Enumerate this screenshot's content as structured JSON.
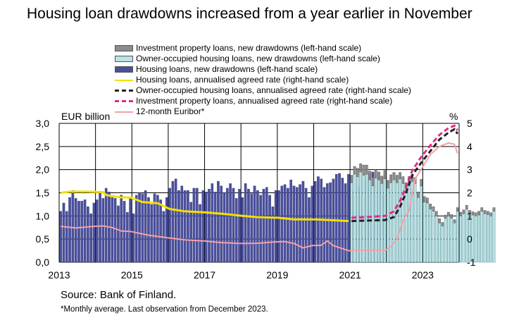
{
  "title": "Housing loan drawdowns increased from a year earlier in November",
  "left_unit": "EUR billion",
  "right_unit": "%",
  "source": "Source: Bank of Finland.",
  "note": "*Monthly average. Last observation from December 2023.",
  "colors": {
    "investment_bar": "#8c8c8c",
    "owner_occupied_bar": "#b9e3e6",
    "housing_bar": "#4a4f9c",
    "housing_rate": "#f2e000",
    "owner_rate": "#222222",
    "investment_rate": "#e8288c",
    "euribor": "#f4a0a8"
  },
  "legend": [
    {
      "label": "Investment property loans, new drawdowns (left-hand scale)",
      "kind": "box",
      "color": "#8c8c8c"
    },
    {
      "label": "Owner-occupied housing loans, new drawdowns (left-hand scale)",
      "kind": "box",
      "color": "#b9e3e6"
    },
    {
      "label": "Housing loans, new drawdowns (left-hand scale)",
      "kind": "box",
      "color": "#4a4f9c"
    },
    {
      "label": "Housing loans, annualised agreed rate (right-hand scale)",
      "kind": "line",
      "color": "#f2e000"
    },
    {
      "label": "Owner-occupied housing loans, annualised agreed rate (right-hand scale)",
      "kind": "dash",
      "color": "#222222"
    },
    {
      "label": "Investment property loans, annualised agreed rate (right-hand scale)",
      "kind": "dash",
      "color": "#e8288c"
    },
    {
      "label": "12-month Euribor*",
      "kind": "line",
      "color": "#f4a0a8"
    }
  ],
  "chart_data": {
    "type": "bar",
    "x_start": "2013-01",
    "x_end": "2023-12",
    "x_ticks": [
      "2013",
      "2015",
      "2017",
      "2019",
      "2021",
      "2023"
    ],
    "left_axis": {
      "ylim": [
        0,
        3
      ],
      "ticks": [
        "0,0",
        "0,5",
        "1,0",
        "1,5",
        "2,0",
        "2,5",
        "3,0"
      ]
    },
    "right_axis": {
      "ylim": [
        -1,
        5
      ],
      "ticks": [
        "-1",
        "0",
        "1",
        "2",
        "3",
        "4",
        "5"
      ]
    },
    "grid": "vertical lines at year starts",
    "housing_loans": {
      "name": "Housing loans, new drawdowns (left-hand scale)",
      "start": "2013-01",
      "values": [
        1.1,
        1.28,
        1.1,
        1.4,
        1.55,
        1.38,
        1.32,
        1.32,
        1.35,
        1.2,
        1.05,
        1.28,
        1.35,
        1.5,
        1.38,
        1.6,
        1.52,
        1.4,
        1.38,
        1.22,
        1.45,
        1.32,
        1.08,
        1.38,
        1.05,
        1.45,
        1.5,
        1.48,
        1.55,
        1.4,
        1.25,
        1.48,
        1.45,
        1.35,
        1.1,
        1.4,
        1.6,
        1.75,
        1.8,
        1.55,
        1.65,
        1.55,
        1.55,
        1.3,
        1.6,
        1.6,
        1.25,
        1.55,
        1.52,
        1.58,
        1.7,
        1.52,
        1.75,
        1.65,
        1.5,
        1.6,
        1.7,
        1.6,
        1.38,
        1.58,
        1.4,
        1.7,
        1.58,
        1.48,
        1.65,
        1.55,
        1.45,
        1.58,
        1.62,
        1.45,
        1.2,
        1.55,
        1.55,
        1.65,
        1.68,
        1.6,
        1.78,
        1.65,
        1.62,
        1.68,
        1.75,
        1.6,
        1.4,
        1.65,
        1.75,
        1.85,
        1.8,
        1.62,
        1.7,
        1.72,
        1.8,
        1.9,
        1.92,
        1.82,
        1.7,
        1.9,
        1.45,
        1.58,
        1.65,
        1.6,
        1.85,
        1.78,
        1.92,
        1.95,
        1.92,
        1.85,
        1.85,
        1.45
      ]
    },
    "owner_occupied_loans": {
      "name": "Owner-occupied housing loans, new drawdowns (left-hand scale)",
      "start": "2021-01",
      "values": [
        1.72,
        1.9,
        1.85,
        1.95,
        1.88,
        1.9,
        1.78,
        1.65,
        1.82,
        1.78,
        1.7,
        1.8,
        1.6,
        1.72,
        1.78,
        1.72,
        1.8,
        1.7,
        1.58,
        1.72,
        1.75,
        1.7,
        1.4,
        1.65,
        1.3,
        1.28,
        1.15,
        1.1,
        1.0,
        0.85,
        0.78,
        0.95,
        1.0,
        0.95,
        0.85,
        1.1,
        1.0,
        1.05,
        1.15,
        1.05,
        1.02,
        1.0,
        1.02,
        1.1,
        1.05,
        1.03,
        1.0,
        1.1
      ]
    },
    "investment_loans": {
      "name": "Investment property loans, new drawdowns (left-hand scale)",
      "start": "2021-01",
      "values": [
        0.16,
        0.17,
        0.18,
        0.18,
        0.22,
        0.2,
        0.19,
        0.18,
        0.18,
        0.17,
        0.16,
        0.18,
        0.17,
        0.17,
        0.16,
        0.16,
        0.14,
        0.15,
        0.14,
        0.13,
        0.14,
        0.13,
        0.12,
        0.14,
        0.12,
        0.11,
        0.11,
        0.1,
        0.1,
        0.09,
        0.08,
        0.07,
        0.08,
        0.08,
        0.07,
        0.08,
        0.08,
        0.08,
        0.08,
        0.07,
        0.07,
        0.07,
        0.08,
        0.08,
        0.07,
        0.07,
        0.07,
        0.08
      ]
    },
    "lines": [
      {
        "name": "Housing loans, annualised agreed rate (right-hand scale)",
        "points": [
          [
            "2013-01",
            2.0
          ],
          [
            "2013-04",
            2.05
          ],
          [
            "2013-10",
            2.05
          ],
          [
            "2014-03",
            2.03
          ],
          [
            "2014-04",
            1.9
          ],
          [
            "2014-09",
            1.8
          ],
          [
            "2014-12",
            1.8
          ],
          [
            "2015-04",
            1.6
          ],
          [
            "2015-09",
            1.55
          ],
          [
            "2016-01",
            1.3
          ],
          [
            "2016-06",
            1.2
          ],
          [
            "2017-01",
            1.15
          ],
          [
            "2017-06",
            1.1
          ],
          [
            "2018-01",
            1.0
          ],
          [
            "2018-06",
            0.95
          ],
          [
            "2019-01",
            0.92
          ],
          [
            "2019-06",
            0.85
          ],
          [
            "2020-01",
            0.85
          ],
          [
            "2020-06",
            0.82
          ],
          [
            "2020-12",
            0.78
          ]
        ]
      },
      {
        "name": "Owner-occupied housing loans, annualised agreed rate (right-hand scale)",
        "points": [
          [
            "2021-01",
            0.78
          ],
          [
            "2021-06",
            0.8
          ],
          [
            "2021-12",
            0.82
          ],
          [
            "2022-03",
            0.95
          ],
          [
            "2022-05",
            1.4
          ],
          [
            "2022-07",
            2.0
          ],
          [
            "2022-09",
            2.75
          ],
          [
            "2022-12",
            3.3
          ],
          [
            "2023-03",
            3.8
          ],
          [
            "2023-06",
            4.3
          ],
          [
            "2023-09",
            4.6
          ],
          [
            "2023-11",
            4.75
          ],
          [
            "2023-12",
            4.55
          ]
        ]
      },
      {
        "name": "Investment property loans, annualised agreed rate (right-hand scale)",
        "points": [
          [
            "2021-01",
            0.92
          ],
          [
            "2021-06",
            0.95
          ],
          [
            "2021-12",
            1.0
          ],
          [
            "2022-03",
            1.2
          ],
          [
            "2022-05",
            1.65
          ],
          [
            "2022-07",
            2.25
          ],
          [
            "2022-09",
            2.95
          ],
          [
            "2022-12",
            3.55
          ],
          [
            "2023-03",
            4.05
          ],
          [
            "2023-06",
            4.5
          ],
          [
            "2023-09",
            4.8
          ],
          [
            "2023-11",
            4.9
          ],
          [
            "2023-12",
            4.7
          ]
        ]
      },
      {
        "name": "12-month Euribor*",
        "points": [
          [
            "2013-01",
            0.55
          ],
          [
            "2013-06",
            0.48
          ],
          [
            "2013-12",
            0.55
          ],
          [
            "2014-03",
            0.57
          ],
          [
            "2014-06",
            0.5
          ],
          [
            "2014-09",
            0.35
          ],
          [
            "2014-12",
            0.33
          ],
          [
            "2015-06",
            0.17
          ],
          [
            "2015-12",
            0.06
          ],
          [
            "2016-06",
            -0.03
          ],
          [
            "2016-12",
            -0.08
          ],
          [
            "2017-06",
            -0.15
          ],
          [
            "2017-12",
            -0.19
          ],
          [
            "2018-06",
            -0.18
          ],
          [
            "2018-12",
            -0.12
          ],
          [
            "2019-03",
            -0.11
          ],
          [
            "2019-06",
            -0.19
          ],
          [
            "2019-09",
            -0.38
          ],
          [
            "2019-12",
            -0.28
          ],
          [
            "2020-03",
            -0.27
          ],
          [
            "2020-05",
            -0.08
          ],
          [
            "2020-07",
            -0.28
          ],
          [
            "2020-12",
            -0.5
          ],
          [
            "2021-06",
            -0.48
          ],
          [
            "2021-12",
            -0.5
          ],
          [
            "2022-02",
            -0.32
          ],
          [
            "2022-04",
            0.0
          ],
          [
            "2022-06",
            0.8
          ],
          [
            "2022-08",
            1.25
          ],
          [
            "2022-10",
            2.6
          ],
          [
            "2022-12",
            3.02
          ],
          [
            "2023-03",
            3.65
          ],
          [
            "2023-06",
            4.0
          ],
          [
            "2023-09",
            4.15
          ],
          [
            "2023-11",
            4.1
          ],
          [
            "2023-12",
            3.7
          ]
        ]
      }
    ]
  }
}
